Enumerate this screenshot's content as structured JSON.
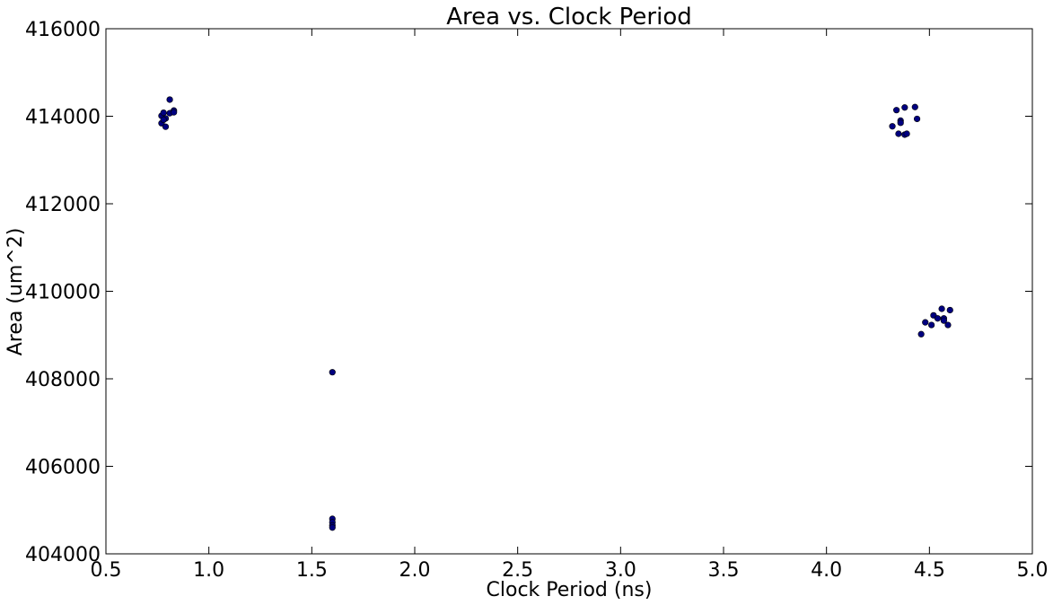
{
  "chart_data": {
    "type": "scatter",
    "title": "Area vs. Clock Period",
    "xlabel": "Clock Period (ns)",
    "ylabel": "Area (um^2)",
    "xlim": [
      0.5,
      5.0
    ],
    "ylim": [
      404000,
      416000
    ],
    "xticks": [
      "0.5",
      "1.0",
      "1.5",
      "2.0",
      "2.5",
      "3.0",
      "3.5",
      "4.0",
      "4.5",
      "5.0"
    ],
    "yticks": [
      "404000",
      "406000",
      "408000",
      "410000",
      "412000",
      "414000",
      "416000"
    ],
    "grid": false,
    "marker_color": "#000080",
    "series": [
      {
        "points": [
          {
            "x": 0.81,
            "y": 414380
          },
          {
            "x": 0.77,
            "y": 414010
          },
          {
            "x": 0.78,
            "y": 414080
          },
          {
            "x": 0.79,
            "y": 413950
          },
          {
            "x": 0.77,
            "y": 413840
          },
          {
            "x": 0.79,
            "y": 413760
          },
          {
            "x": 0.81,
            "y": 414070
          },
          {
            "x": 0.83,
            "y": 414130
          },
          {
            "x": 0.83,
            "y": 414090
          },
          {
            "x": 0.78,
            "y": 413920
          },
          {
            "x": 1.6,
            "y": 408150
          },
          {
            "x": 1.6,
            "y": 404800
          },
          {
            "x": 1.6,
            "y": 404720
          },
          {
            "x": 1.6,
            "y": 404650
          },
          {
            "x": 1.6,
            "y": 404600
          },
          {
            "x": 4.32,
            "y": 413770
          },
          {
            "x": 4.34,
            "y": 414140
          },
          {
            "x": 4.35,
            "y": 413600
          },
          {
            "x": 4.36,
            "y": 413900
          },
          {
            "x": 4.36,
            "y": 413850
          },
          {
            "x": 4.38,
            "y": 414200
          },
          {
            "x": 4.38,
            "y": 413580
          },
          {
            "x": 4.39,
            "y": 413600
          },
          {
            "x": 4.43,
            "y": 414210
          },
          {
            "x": 4.44,
            "y": 413940
          },
          {
            "x": 4.46,
            "y": 409020
          },
          {
            "x": 4.48,
            "y": 409290
          },
          {
            "x": 4.51,
            "y": 409230
          },
          {
            "x": 4.52,
            "y": 409450
          },
          {
            "x": 4.54,
            "y": 409380
          },
          {
            "x": 4.56,
            "y": 409600
          },
          {
            "x": 4.57,
            "y": 409380
          },
          {
            "x": 4.57,
            "y": 409330
          },
          {
            "x": 4.59,
            "y": 409230
          },
          {
            "x": 4.6,
            "y": 409570
          }
        ]
      }
    ]
  }
}
